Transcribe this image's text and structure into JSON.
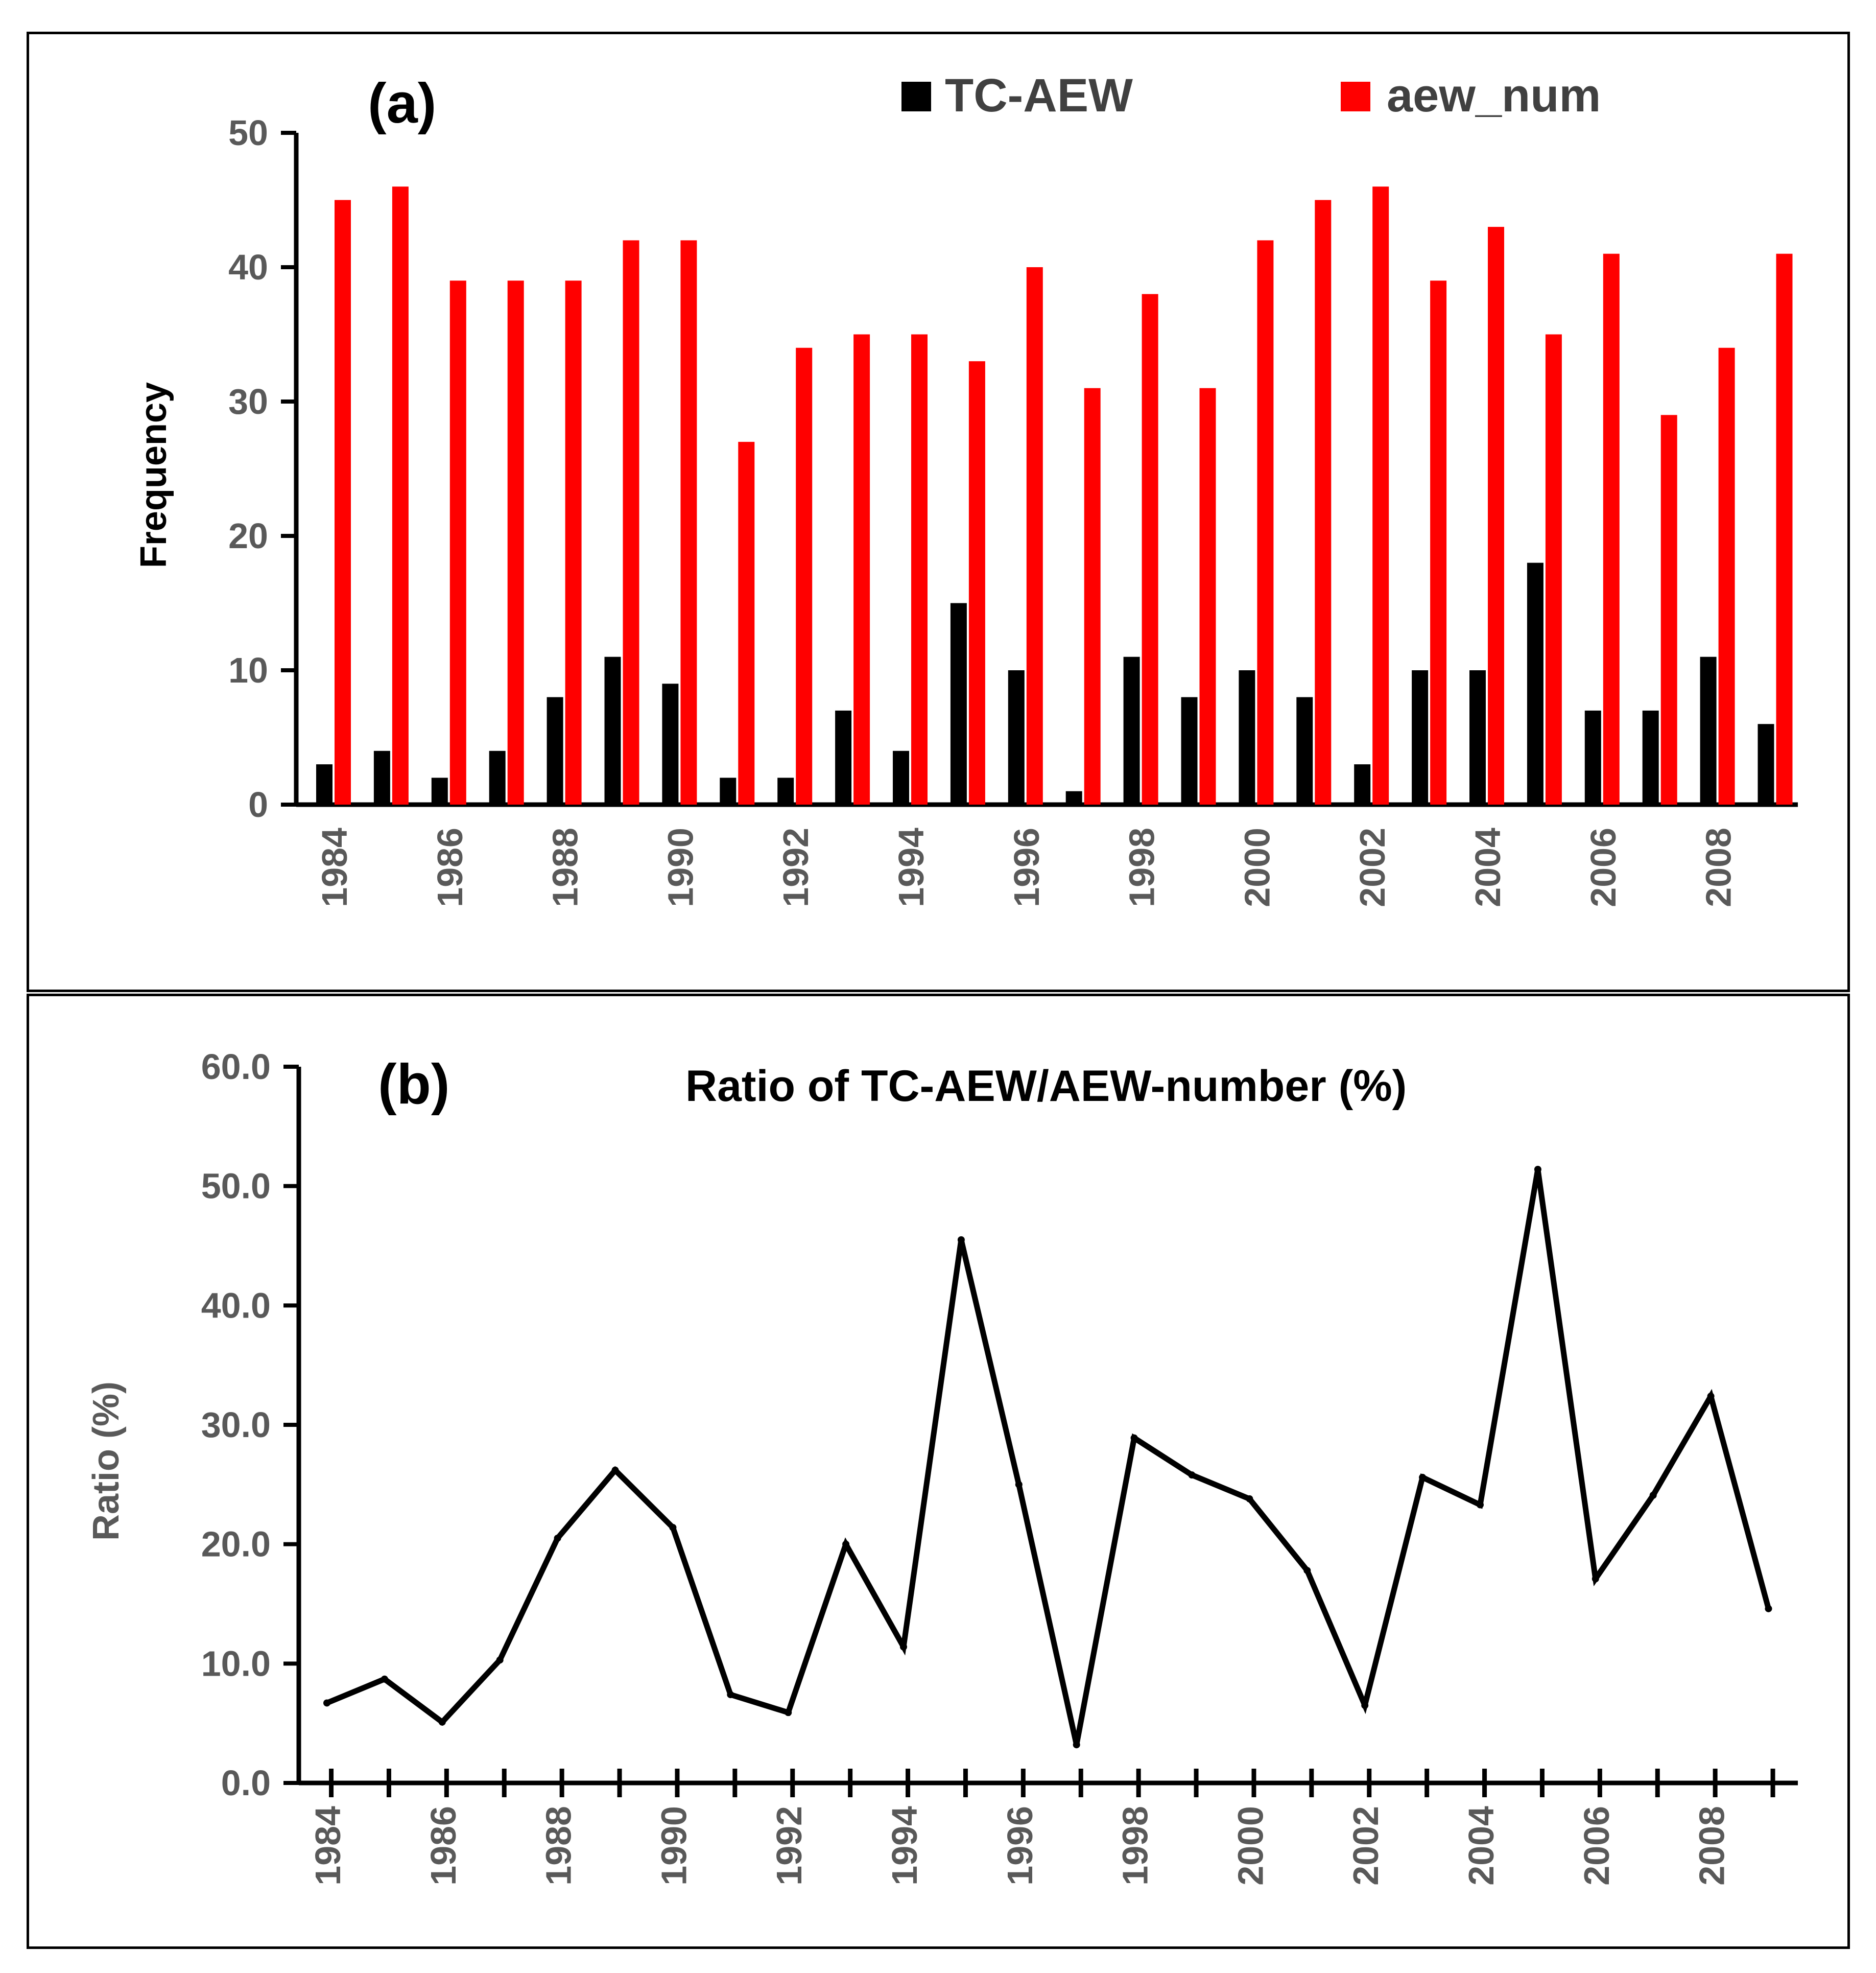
{
  "chart_data": [
    {
      "type": "bar",
      "panel_label": "(a)",
      "title": "",
      "xlabel": "",
      "ylabel": "Frequency",
      "ylim": [
        0,
        50
      ],
      "yticks": [
        "0",
        "10",
        "20",
        "30",
        "40",
        "50"
      ],
      "years": [
        1984,
        1985,
        1986,
        1987,
        1988,
        1989,
        1990,
        1991,
        1992,
        1993,
        1994,
        1995,
        1996,
        1997,
        1998,
        1999,
        2000,
        2001,
        2002,
        2003,
        2004,
        2005,
        2006,
        2007,
        2008,
        2009
      ],
      "xtick_labels": [
        "1984",
        "1986",
        "1988",
        "1990",
        "1992",
        "1994",
        "1996",
        "1998",
        "2000",
        "2002",
        "2004",
        "2006",
        "2008"
      ],
      "legend": [
        "TC-AEW",
        "aew_num"
      ],
      "colors": {
        "TC-AEW": "#000000",
        "aew_num": "#ff0000"
      },
      "series": [
        {
          "name": "TC-AEW",
          "values": [
            3,
            4,
            2,
            4,
            8,
            11,
            9,
            2,
            2,
            7,
            4,
            15,
            10,
            1,
            11,
            8,
            10,
            8,
            3,
            10,
            10,
            18,
            7,
            7,
            11,
            6
          ]
        },
        {
          "name": "aew_num",
          "values": [
            45,
            46,
            39,
            39,
            39,
            42,
            42,
            27,
            34,
            35,
            35,
            33,
            40,
            31,
            38,
            31,
            42,
            45,
            46,
            39,
            43,
            35,
            41,
            29,
            34,
            41
          ]
        }
      ]
    },
    {
      "type": "line",
      "panel_label": "(b)",
      "title": "Ratio of TC-AEW/AEW-number (%)",
      "xlabel": "",
      "ylabel": "Ratio (%)",
      "ylim": [
        0,
        60
      ],
      "yticks": [
        "0.0",
        "10.0",
        "20.0",
        "30.0",
        "40.0",
        "50.0",
        "60.0"
      ],
      "years": [
        1984,
        1985,
        1986,
        1987,
        1988,
        1989,
        1990,
        1991,
        1992,
        1993,
        1994,
        1995,
        1996,
        1997,
        1998,
        1999,
        2000,
        2001,
        2002,
        2003,
        2004,
        2005,
        2006,
        2007,
        2008,
        2009
      ],
      "xtick_labels": [
        "1984",
        "1986",
        "1988",
        "1990",
        "1992",
        "1994",
        "1996",
        "1998",
        "2000",
        "2002",
        "2004",
        "2006",
        "2008"
      ],
      "color": "#000000",
      "series": [
        {
          "name": "Ratio",
          "values": [
            6.7,
            8.7,
            5.1,
            10.3,
            20.5,
            26.2,
            21.4,
            7.4,
            5.9,
            20.0,
            11.4,
            45.5,
            25.0,
            3.2,
            28.9,
            25.8,
            23.8,
            17.8,
            6.5,
            25.6,
            23.3,
            51.4,
            17.1,
            24.1,
            32.4,
            14.6
          ]
        }
      ]
    }
  ]
}
